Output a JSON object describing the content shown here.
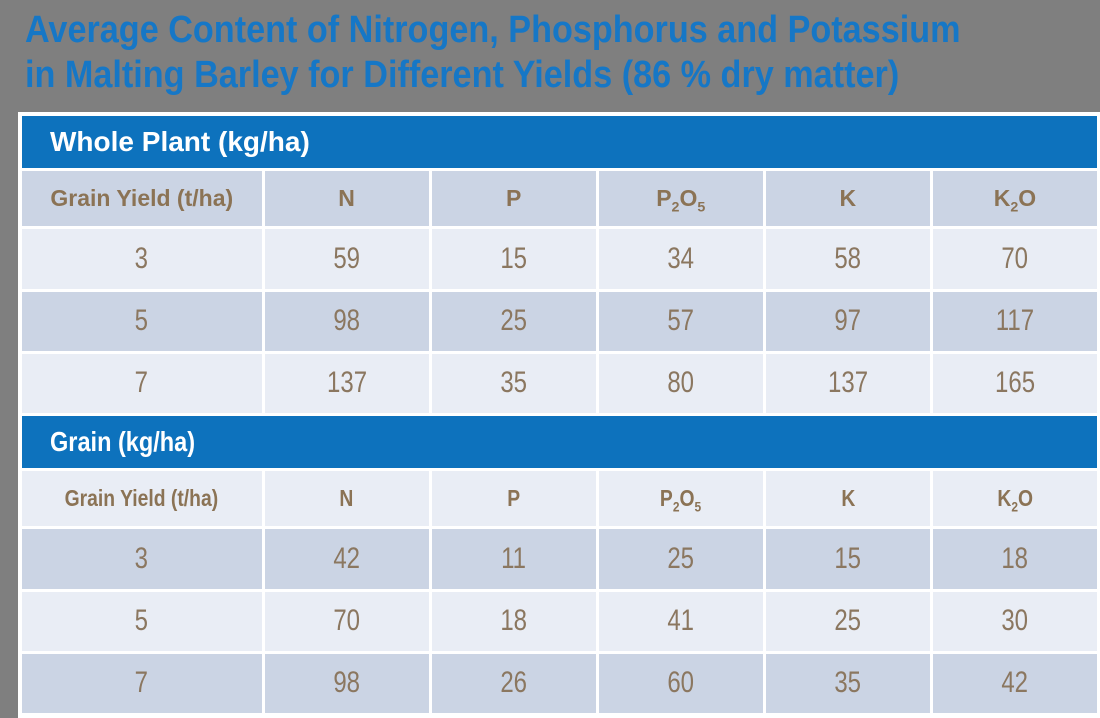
{
  "title": {
    "line1": "Average Content of Nitrogen, Phosphorus and Potassium",
    "line2": "in Malting Barley for Different Yields (86 % dry matter)"
  },
  "colors": {
    "background_gray": "#7F7F7F",
    "title_blue": "#1677C6",
    "banner_blue": "#0D72BD",
    "header_text_brown": "#8B7355",
    "number_text_brown": "#8B7760",
    "band_dark": "#CBD4E4",
    "band_light": "#E9EDF5",
    "grid_white": "#FFFFFF",
    "section_header_text": "#FFFFFF"
  },
  "table": {
    "columns": [
      {
        "name": "grain-yield",
        "segments": [
          {
            "text": "Grain Yield (t/ha)"
          }
        ]
      },
      {
        "name": "n",
        "segments": [
          {
            "text": "N"
          }
        ]
      },
      {
        "name": "p",
        "segments": [
          {
            "text": "P"
          }
        ]
      },
      {
        "name": "p2o5",
        "segments": [
          {
            "text": "P"
          },
          {
            "text": "2",
            "sub": true
          },
          {
            "text": "O"
          },
          {
            "text": "5",
            "sub": true
          }
        ]
      },
      {
        "name": "k",
        "segments": [
          {
            "text": "K"
          }
        ]
      },
      {
        "name": "k2o",
        "segments": [
          {
            "text": "K"
          },
          {
            "text": "2",
            "sub": true
          },
          {
            "text": "O"
          }
        ]
      }
    ],
    "sections": [
      {
        "title": "Whole Plant (kg/ha)",
        "condensed": false,
        "header_shade": "dark",
        "row_shading": [
          "light",
          "dark",
          "light"
        ],
        "rows": [
          [
            "3",
            "59",
            "15",
            "34",
            "58",
            "70"
          ],
          [
            "5",
            "98",
            "25",
            "57",
            "97",
            "117"
          ],
          [
            "7",
            "137",
            "35",
            "80",
            "137",
            "165"
          ]
        ]
      },
      {
        "title": "Grain (kg/ha)",
        "condensed": true,
        "header_shade": "light",
        "row_shading": [
          "dark",
          "light",
          "dark"
        ],
        "rows": [
          [
            "3",
            "42",
            "11",
            "25",
            "15",
            "18"
          ],
          [
            "5",
            "70",
            "18",
            "41",
            "25",
            "30"
          ],
          [
            "7",
            "98",
            "26",
            "60",
            "35",
            "42"
          ]
        ]
      }
    ]
  }
}
